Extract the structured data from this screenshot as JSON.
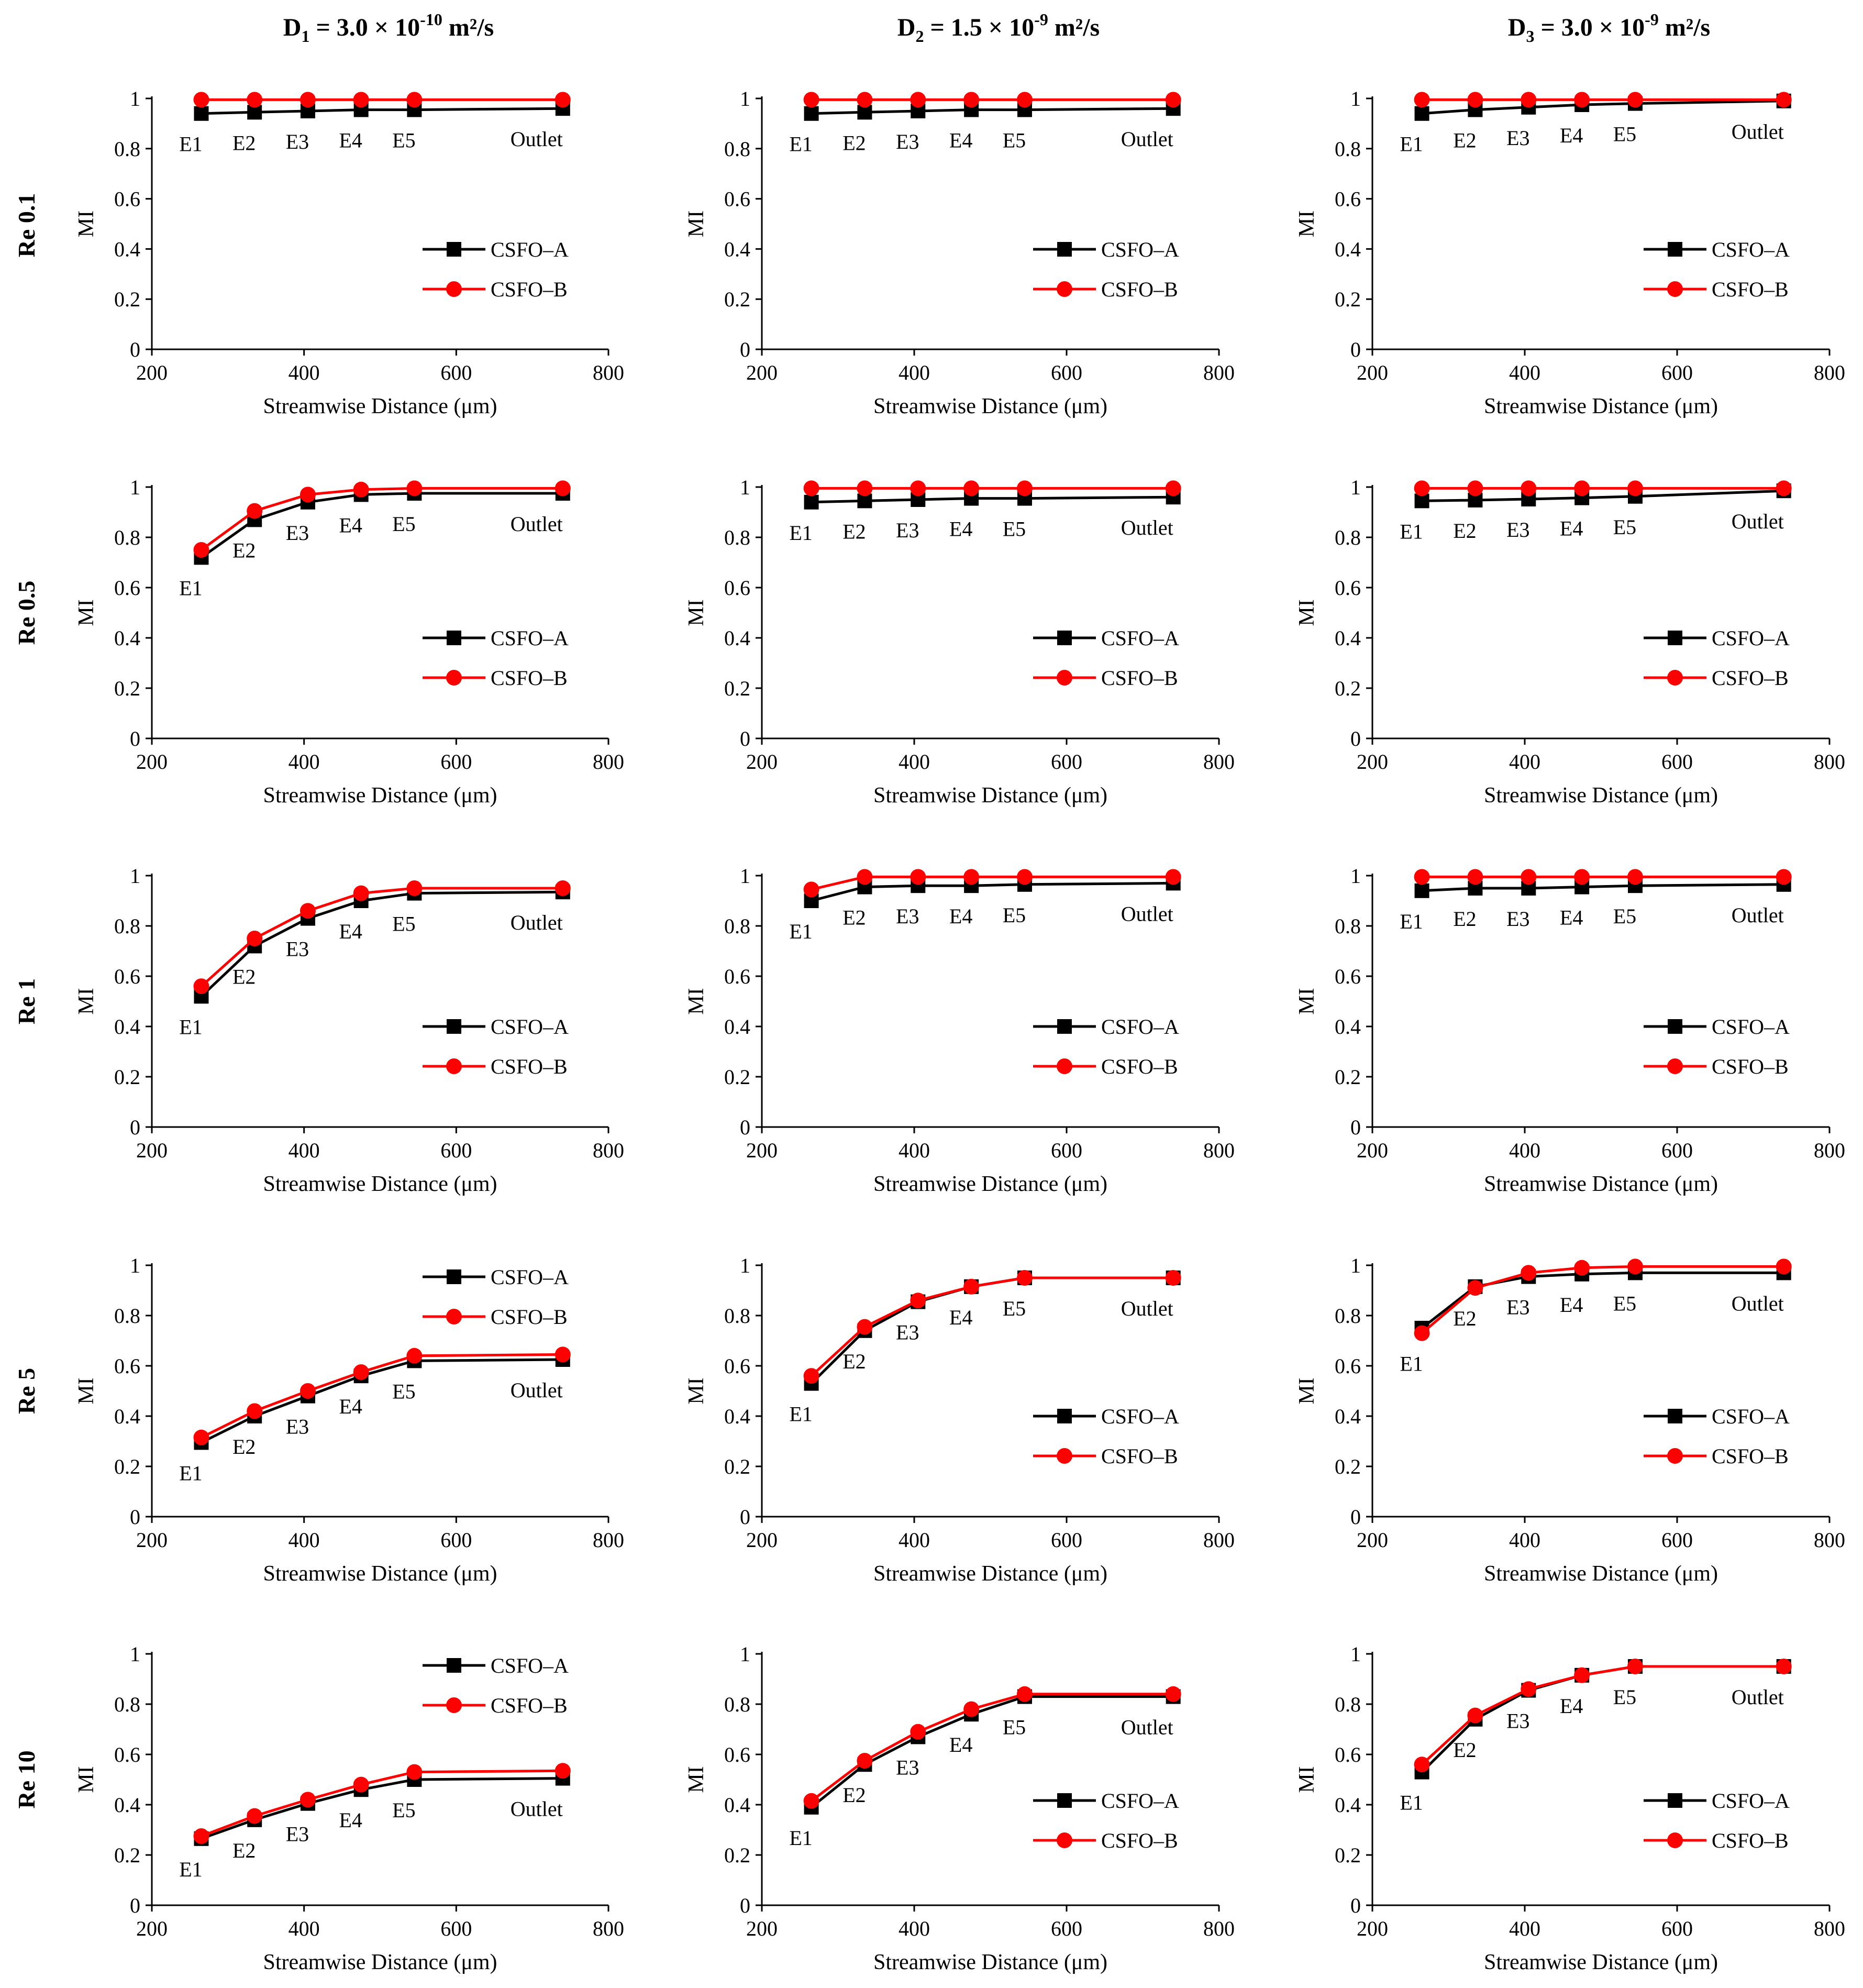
{
  "column_headers": [
    {
      "base": "D",
      "sub": "1",
      "eq": " = 3.0 × 10",
      "exp": "-10",
      "unit": " m²/s"
    },
    {
      "base": "D",
      "sub": "2",
      "eq": " = 1.5 × 10",
      "exp": "-9",
      "unit": " m²/s"
    },
    {
      "base": "D",
      "sub": "3",
      "eq": " = 3.0 × 10",
      "exp": "-9",
      "unit": " m²/s"
    }
  ],
  "row_labels": [
    "Re 0.1",
    "Re 0.5",
    "Re 1",
    "Re 5",
    "Re 10"
  ],
  "axis": {
    "xlabel": "Streamwise Distance (μm)",
    "ylabel": "MI",
    "xlim": [
      200,
      800
    ],
    "ylim": [
      0,
      1
    ],
    "xticks": [
      "200",
      "400",
      "600",
      "800"
    ],
    "yticks": [
      "0",
      "0.2",
      "0.4",
      "0.6",
      "0.8",
      "1"
    ]
  },
  "series_names": [
    "CSFO–A",
    "CSFO–B"
  ],
  "colors": {
    "csfo_a": "#000000",
    "csfo_b": "#ff0000"
  },
  "chart_data": [
    {
      "type": "line",
      "row": "Re 0.1",
      "col": "D1",
      "legend": "right-middle",
      "x": [
        265,
        335,
        405,
        475,
        545,
        740
      ],
      "point_labels": [
        "E1",
        "E2",
        "E3",
        "E4",
        "E5",
        "Outlet"
      ],
      "series": [
        {
          "name": "CSFO–A",
          "values": [
            0.94,
            0.945,
            0.95,
            0.955,
            0.955,
            0.96
          ]
        },
        {
          "name": "CSFO–B",
          "values": [
            0.995,
            0.995,
            0.995,
            0.995,
            0.995,
            0.995
          ]
        }
      ]
    },
    {
      "type": "line",
      "row": "Re 0.1",
      "col": "D2",
      "legend": "right-middle",
      "x": [
        265,
        335,
        405,
        475,
        545,
        740
      ],
      "point_labels": [
        "E1",
        "E2",
        "E3",
        "E4",
        "E5",
        "Outlet"
      ],
      "series": [
        {
          "name": "CSFO–A",
          "values": [
            0.94,
            0.945,
            0.95,
            0.955,
            0.955,
            0.96
          ]
        },
        {
          "name": "CSFO–B",
          "values": [
            0.995,
            0.995,
            0.995,
            0.995,
            0.995,
            0.995
          ]
        }
      ]
    },
    {
      "type": "line",
      "row": "Re 0.1",
      "col": "D3",
      "legend": "right-middle",
      "x": [
        265,
        335,
        405,
        475,
        545,
        740
      ],
      "point_labels": [
        "E1",
        "E2",
        "E3",
        "E4",
        "E5",
        "Outlet"
      ],
      "series": [
        {
          "name": "CSFO–A",
          "values": [
            0.94,
            0.955,
            0.965,
            0.975,
            0.98,
            0.99
          ]
        },
        {
          "name": "CSFO–B",
          "values": [
            0.995,
            0.995,
            0.995,
            0.995,
            0.995,
            0.995
          ]
        }
      ]
    },
    {
      "type": "line",
      "row": "Re 0.5",
      "col": "D1",
      "legend": "right-middle",
      "x": [
        265,
        335,
        405,
        475,
        545,
        740
      ],
      "point_labels": [
        "E1",
        "E2",
        "E3",
        "E4",
        "E5",
        "Outlet"
      ],
      "series": [
        {
          "name": "CSFO–A",
          "values": [
            0.72,
            0.87,
            0.94,
            0.97,
            0.975,
            0.975
          ]
        },
        {
          "name": "CSFO–B",
          "values": [
            0.75,
            0.905,
            0.97,
            0.99,
            0.995,
            0.995
          ]
        }
      ]
    },
    {
      "type": "line",
      "row": "Re 0.5",
      "col": "D2",
      "legend": "right-middle",
      "x": [
        265,
        335,
        405,
        475,
        545,
        740
      ],
      "point_labels": [
        "E1",
        "E2",
        "E3",
        "E4",
        "E5",
        "Outlet"
      ],
      "series": [
        {
          "name": "CSFO–A",
          "values": [
            0.94,
            0.945,
            0.95,
            0.955,
            0.955,
            0.96
          ]
        },
        {
          "name": "CSFO–B",
          "values": [
            0.995,
            0.995,
            0.995,
            0.995,
            0.995,
            0.995
          ]
        }
      ]
    },
    {
      "type": "line",
      "row": "Re 0.5",
      "col": "D3",
      "legend": "right-middle",
      "x": [
        265,
        335,
        405,
        475,
        545,
        740
      ],
      "point_labels": [
        "E1",
        "E2",
        "E3",
        "E4",
        "E5",
        "Outlet"
      ],
      "series": [
        {
          "name": "CSFO–A",
          "values": [
            0.945,
            0.948,
            0.952,
            0.957,
            0.963,
            0.985
          ]
        },
        {
          "name": "CSFO–B",
          "values": [
            0.995,
            0.995,
            0.995,
            0.995,
            0.995,
            0.995
          ]
        }
      ]
    },
    {
      "type": "line",
      "row": "Re 1",
      "col": "D1",
      "legend": "right-middle",
      "x": [
        265,
        335,
        405,
        475,
        545,
        740
      ],
      "point_labels": [
        "E1",
        "E2",
        "E3",
        "E4",
        "E5",
        "Outlet"
      ],
      "series": [
        {
          "name": "CSFO–A",
          "values": [
            0.52,
            0.72,
            0.83,
            0.9,
            0.93,
            0.935
          ]
        },
        {
          "name": "CSFO–B",
          "values": [
            0.56,
            0.75,
            0.86,
            0.93,
            0.95,
            0.95
          ]
        }
      ]
    },
    {
      "type": "line",
      "row": "Re 1",
      "col": "D2",
      "legend": "right-middle",
      "x": [
        265,
        335,
        405,
        475,
        545,
        740
      ],
      "point_labels": [
        "E1",
        "E2",
        "E3",
        "E4",
        "E5",
        "Outlet"
      ],
      "series": [
        {
          "name": "CSFO–A",
          "values": [
            0.9,
            0.955,
            0.96,
            0.96,
            0.965,
            0.97
          ]
        },
        {
          "name": "CSFO–B",
          "values": [
            0.945,
            0.995,
            0.995,
            0.995,
            0.995,
            0.995
          ]
        }
      ]
    },
    {
      "type": "line",
      "row": "Re 1",
      "col": "D3",
      "legend": "right-middle",
      "x": [
        265,
        335,
        405,
        475,
        545,
        740
      ],
      "point_labels": [
        "E1",
        "E2",
        "E3",
        "E4",
        "E5",
        "Outlet"
      ],
      "series": [
        {
          "name": "CSFO–A",
          "values": [
            0.94,
            0.95,
            0.95,
            0.955,
            0.96,
            0.965
          ]
        },
        {
          "name": "CSFO–B",
          "values": [
            0.995,
            0.995,
            0.995,
            0.995,
            0.995,
            0.995
          ]
        }
      ]
    },
    {
      "type": "line",
      "row": "Re 5",
      "col": "D1",
      "legend": "top-right",
      "x": [
        265,
        335,
        405,
        475,
        545,
        740
      ],
      "point_labels": [
        "E1",
        "E2",
        "E3",
        "E4",
        "E5",
        "Outlet"
      ],
      "series": [
        {
          "name": "CSFO–A",
          "values": [
            0.295,
            0.4,
            0.48,
            0.56,
            0.62,
            0.625
          ]
        },
        {
          "name": "CSFO–B",
          "values": [
            0.315,
            0.42,
            0.5,
            0.575,
            0.64,
            0.645
          ]
        }
      ]
    },
    {
      "type": "line",
      "row": "Re 5",
      "col": "D2",
      "legend": "right-middle",
      "x": [
        265,
        335,
        405,
        475,
        545,
        740
      ],
      "point_labels": [
        "E1",
        "E2",
        "E3",
        "E4",
        "E5",
        "Outlet"
      ],
      "series": [
        {
          "name": "CSFO–A",
          "values": [
            0.53,
            0.74,
            0.855,
            0.915,
            0.95,
            0.95
          ]
        },
        {
          "name": "CSFO–B",
          "values": [
            0.56,
            0.755,
            0.86,
            0.915,
            0.95,
            0.95
          ]
        }
      ]
    },
    {
      "type": "line",
      "row": "Re 5",
      "col": "D3",
      "legend": "right-middle",
      "x": [
        265,
        335,
        405,
        475,
        545,
        740
      ],
      "point_labels": [
        "E1",
        "E2",
        "E3",
        "E4",
        "E5",
        "Outlet"
      ],
      "series": [
        {
          "name": "CSFO–A",
          "values": [
            0.75,
            0.915,
            0.955,
            0.965,
            0.97,
            0.97
          ]
        },
        {
          "name": "CSFO–B",
          "values": [
            0.73,
            0.91,
            0.97,
            0.99,
            0.995,
            0.995
          ]
        }
      ]
    },
    {
      "type": "line",
      "row": "Re 10",
      "col": "D1",
      "legend": "top-right",
      "x": [
        265,
        335,
        405,
        475,
        545,
        740
      ],
      "point_labels": [
        "E1",
        "E2",
        "E3",
        "E4",
        "E5",
        "Outlet"
      ],
      "series": [
        {
          "name": "CSFO–A",
          "values": [
            0.265,
            0.34,
            0.405,
            0.46,
            0.5,
            0.505
          ]
        },
        {
          "name": "CSFO–B",
          "values": [
            0.275,
            0.355,
            0.42,
            0.48,
            0.53,
            0.535
          ]
        }
      ]
    },
    {
      "type": "line",
      "row": "Re 10",
      "col": "D2",
      "legend": "bottom-right",
      "x": [
        265,
        335,
        405,
        475,
        545,
        740
      ],
      "point_labels": [
        "E1",
        "E2",
        "E3",
        "E4",
        "E5",
        "Outlet"
      ],
      "series": [
        {
          "name": "CSFO–A",
          "values": [
            0.39,
            0.56,
            0.67,
            0.76,
            0.83,
            0.83
          ]
        },
        {
          "name": "CSFO–B",
          "values": [
            0.415,
            0.575,
            0.69,
            0.78,
            0.84,
            0.84
          ]
        }
      ]
    },
    {
      "type": "line",
      "row": "Re 10",
      "col": "D3",
      "legend": "bottom-right",
      "x": [
        265,
        335,
        405,
        475,
        545,
        740
      ],
      "point_labels": [
        "E1",
        "E2",
        "E3",
        "E4",
        "E5",
        "Outlet"
      ],
      "series": [
        {
          "name": "CSFO–A",
          "values": [
            0.53,
            0.74,
            0.855,
            0.915,
            0.95,
            0.95
          ]
        },
        {
          "name": "CSFO–B",
          "values": [
            0.56,
            0.755,
            0.86,
            0.915,
            0.95,
            0.95
          ]
        }
      ]
    }
  ]
}
